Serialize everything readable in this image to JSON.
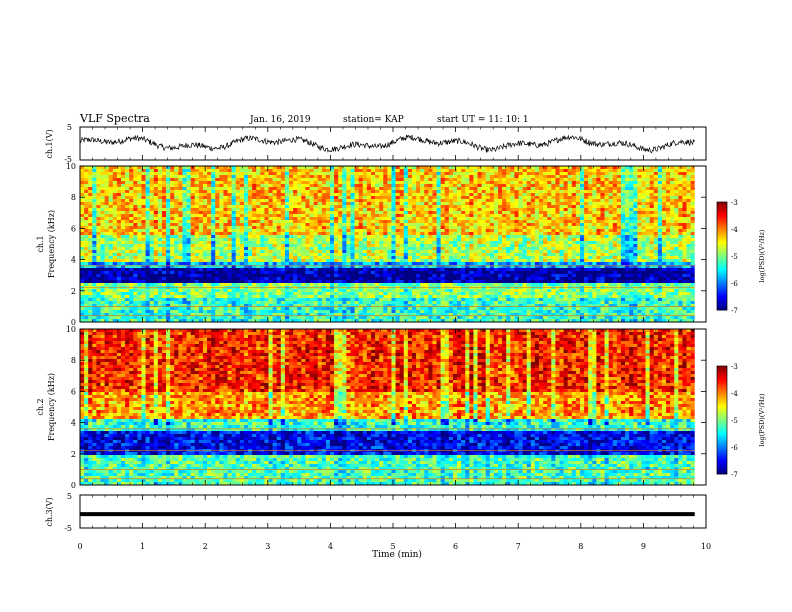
{
  "header": {
    "title": "VLF Spectra",
    "date": "Jan. 16, 2019",
    "station": "station= KAP",
    "start_ut": "start  UT =   11: 10: 1"
  },
  "chart_data": [
    {
      "type": "line",
      "panel": "ch1-waveform",
      "ylabel": "ch.1(V)",
      "ylim": [
        -5,
        5
      ],
      "yticks": [
        "5",
        "-5"
      ],
      "x_range": [
        0,
        10
      ],
      "note_values": "noisy waveform oscillating roughly between -2 and 2 V over ~9.8 min"
    },
    {
      "type": "heatmap",
      "panel": "ch1-spectrogram",
      "ylabel": "ch.1\nFrequency (kHz)",
      "ylim": [
        0,
        10
      ],
      "yticks": [
        "0",
        "2",
        "4",
        "6",
        "8",
        "10"
      ],
      "colorbar": {
        "label": "log(PSD)(V²/Hz)",
        "ticks": [
          "-3",
          "-4",
          "-5",
          "-6",
          "-7"
        ],
        "range": [
          -7,
          -3
        ]
      },
      "bands": [
        {
          "f0": 0,
          "f1": 1.6,
          "level": -5.3
        },
        {
          "f0": 1.6,
          "f1": 2.5,
          "level": -5.0
        },
        {
          "f0": 2.5,
          "f1": 3.4,
          "level": -6.8
        },
        {
          "f0": 3.4,
          "f1": 3.9,
          "level": -5.8
        },
        {
          "f0": 3.9,
          "f1": 5.5,
          "level": -4.8
        },
        {
          "f0": 5.5,
          "f1": 10,
          "level": -4.3
        }
      ]
    },
    {
      "type": "heatmap",
      "panel": "ch2-spectrogram",
      "ylabel": "ch.2\nFrequency (kHz)",
      "ylim": [
        0,
        10
      ],
      "yticks": [
        "0",
        "2",
        "4",
        "6",
        "8",
        "10"
      ],
      "colorbar": {
        "label": "log(PSD)(V²/Hz)",
        "ticks": [
          "-3",
          "-4",
          "-5",
          "-6",
          "-7"
        ],
        "range": [
          -7,
          -3
        ]
      },
      "bands": [
        {
          "f0": 0,
          "f1": 2.0,
          "level": -5.2
        },
        {
          "f0": 2.0,
          "f1": 3.4,
          "level": -6.5
        },
        {
          "f0": 3.4,
          "f1": 4.2,
          "level": -5.3
        },
        {
          "f0": 4.2,
          "f1": 6.0,
          "level": -4.1
        },
        {
          "f0": 6.0,
          "f1": 10,
          "level": -3.6
        }
      ]
    },
    {
      "type": "line",
      "panel": "ch3-waveform",
      "ylabel": "ch.3(V)",
      "ylim": [
        -5,
        5
      ],
      "yticks": [
        "5",
        "-5"
      ],
      "constant_value": -0.8,
      "xlabel": "Time (min)",
      "xlim": [
        0,
        10
      ],
      "xticks": [
        "0",
        "1",
        "2",
        "3",
        "4",
        "5",
        "6",
        "7",
        "8",
        "9",
        "10"
      ]
    }
  ]
}
